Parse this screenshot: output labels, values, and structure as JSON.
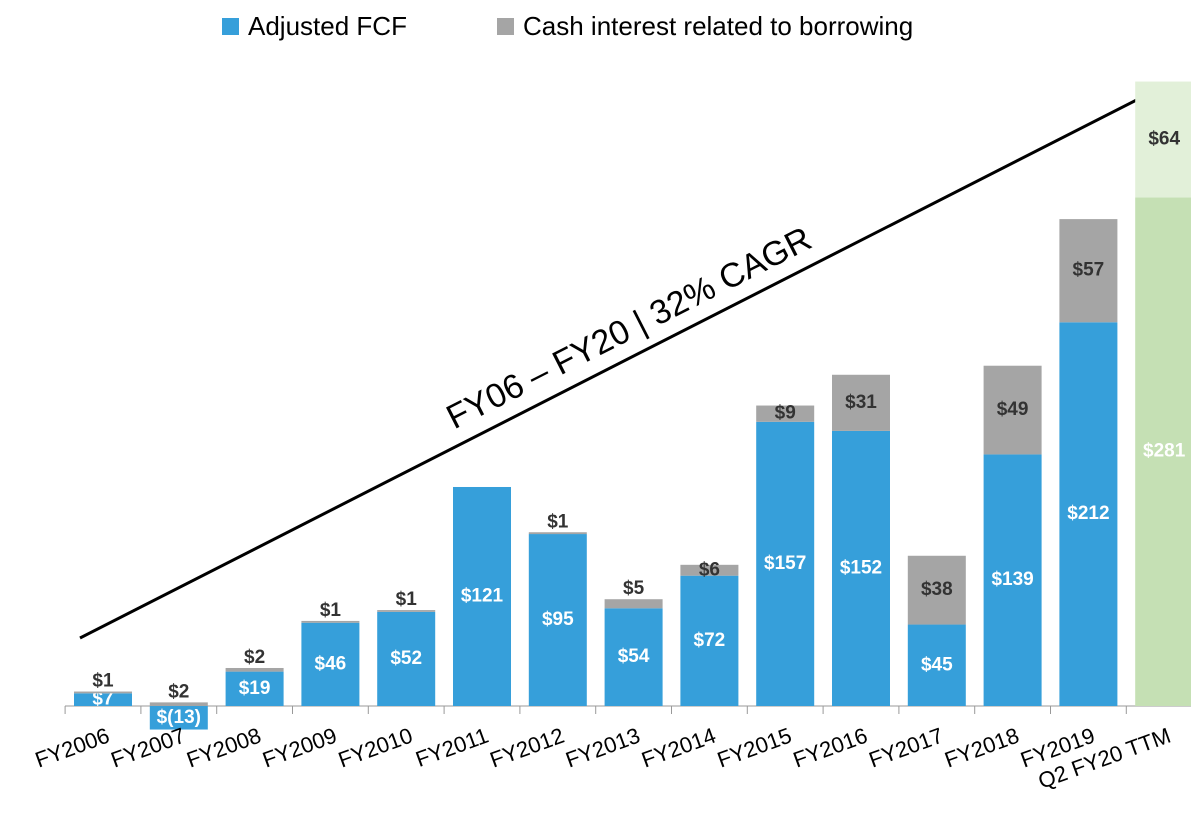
{
  "chart_data": {
    "type": "stacked_bar",
    "categories": [
      "FY2006",
      "FY2007",
      "FY2008",
      "FY2009",
      "FY2010",
      "FY2011",
      "FY2012",
      "FY2013",
      "FY2014",
      "FY2015",
      "FY2016",
      "FY2017",
      "FY2018",
      "FY2019",
      "Q2 FY20 TTM"
    ],
    "series": [
      {
        "name": "Adjusted FCF",
        "color": "#369fda",
        "highlight_color": "#c5e0b4",
        "values": [
          7,
          -13,
          19,
          46,
          52,
          121,
          95,
          54,
          72,
          157,
          152,
          45,
          139,
          212,
          281
        ],
        "value_labels": [
          "$7",
          "$(13)",
          "$19",
          "$46",
          "$52",
          "$121",
          "$95",
          "$54",
          "$72",
          "$157",
          "$152",
          "$45",
          "$139",
          "$212",
          "$281"
        ]
      },
      {
        "name": "Cash interest related to borrowing",
        "color": "#a5a5a5",
        "highlight_color": "#e2f0d9",
        "values": [
          1,
          2,
          2,
          1,
          1,
          null,
          1,
          5,
          6,
          9,
          31,
          38,
          49,
          57,
          64
        ],
        "value_labels": [
          "$1",
          "$2",
          "$2",
          "$1",
          "$1",
          null,
          "$1",
          "$5",
          "$6",
          "$9",
          "$31",
          "$38",
          "$49",
          "$57",
          "$64"
        ]
      }
    ],
    "highlight_index": 14,
    "annotation": "FY06 – FY20 | 32% CAGR"
  }
}
